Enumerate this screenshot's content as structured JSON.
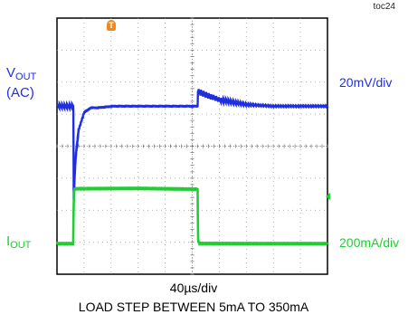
{
  "figure_id": "toc24",
  "caption": "LOAD STEP BETWEEN 5mA TO 350mA",
  "timebase": "40µs/div",
  "channels": {
    "vout": {
      "name_main": "V",
      "name_sub": "OUT",
      "name_suffix": "(AC)",
      "scale": "20mV/div",
      "color": "#1f2fe0"
    },
    "iout": {
      "name_main": "I",
      "name_sub": "OUT",
      "scale": "200mA/div",
      "color": "#22cc33"
    }
  },
  "trigger_marker": {
    "label": "T",
    "color": "#f08a1e"
  },
  "chart_data": {
    "type": "line",
    "grid": true,
    "divisions": {
      "x": 10,
      "y": 8
    },
    "xlabel": "40µs/div",
    "series": [
      {
        "name": "VOUT (AC)",
        "unit": "mV",
        "x_us": [
          0,
          24,
          24,
          24.8,
          26,
          28,
          32,
          40,
          50,
          60,
          84,
          120,
          160,
          208,
          208.4,
          240,
          280,
          320,
          400
        ],
        "values": [
          0,
          0,
          25,
          -62,
          -45,
          -30,
          -15,
          -4,
          -1,
          -1,
          0,
          0,
          0,
          0,
          9,
          4,
          1,
          0,
          0
        ]
      },
      {
        "name": "IOUT",
        "unit": "mA",
        "x_us": [
          0,
          24,
          24.4,
          25.2,
          26,
          28,
          120,
          208,
          208.2,
          208.8,
          210,
          212,
          300,
          400
        ],
        "values": [
          5,
          5,
          180,
          330,
          345,
          348,
          350,
          345,
          200,
          20,
          10,
          6,
          5,
          5
        ]
      }
    ]
  }
}
